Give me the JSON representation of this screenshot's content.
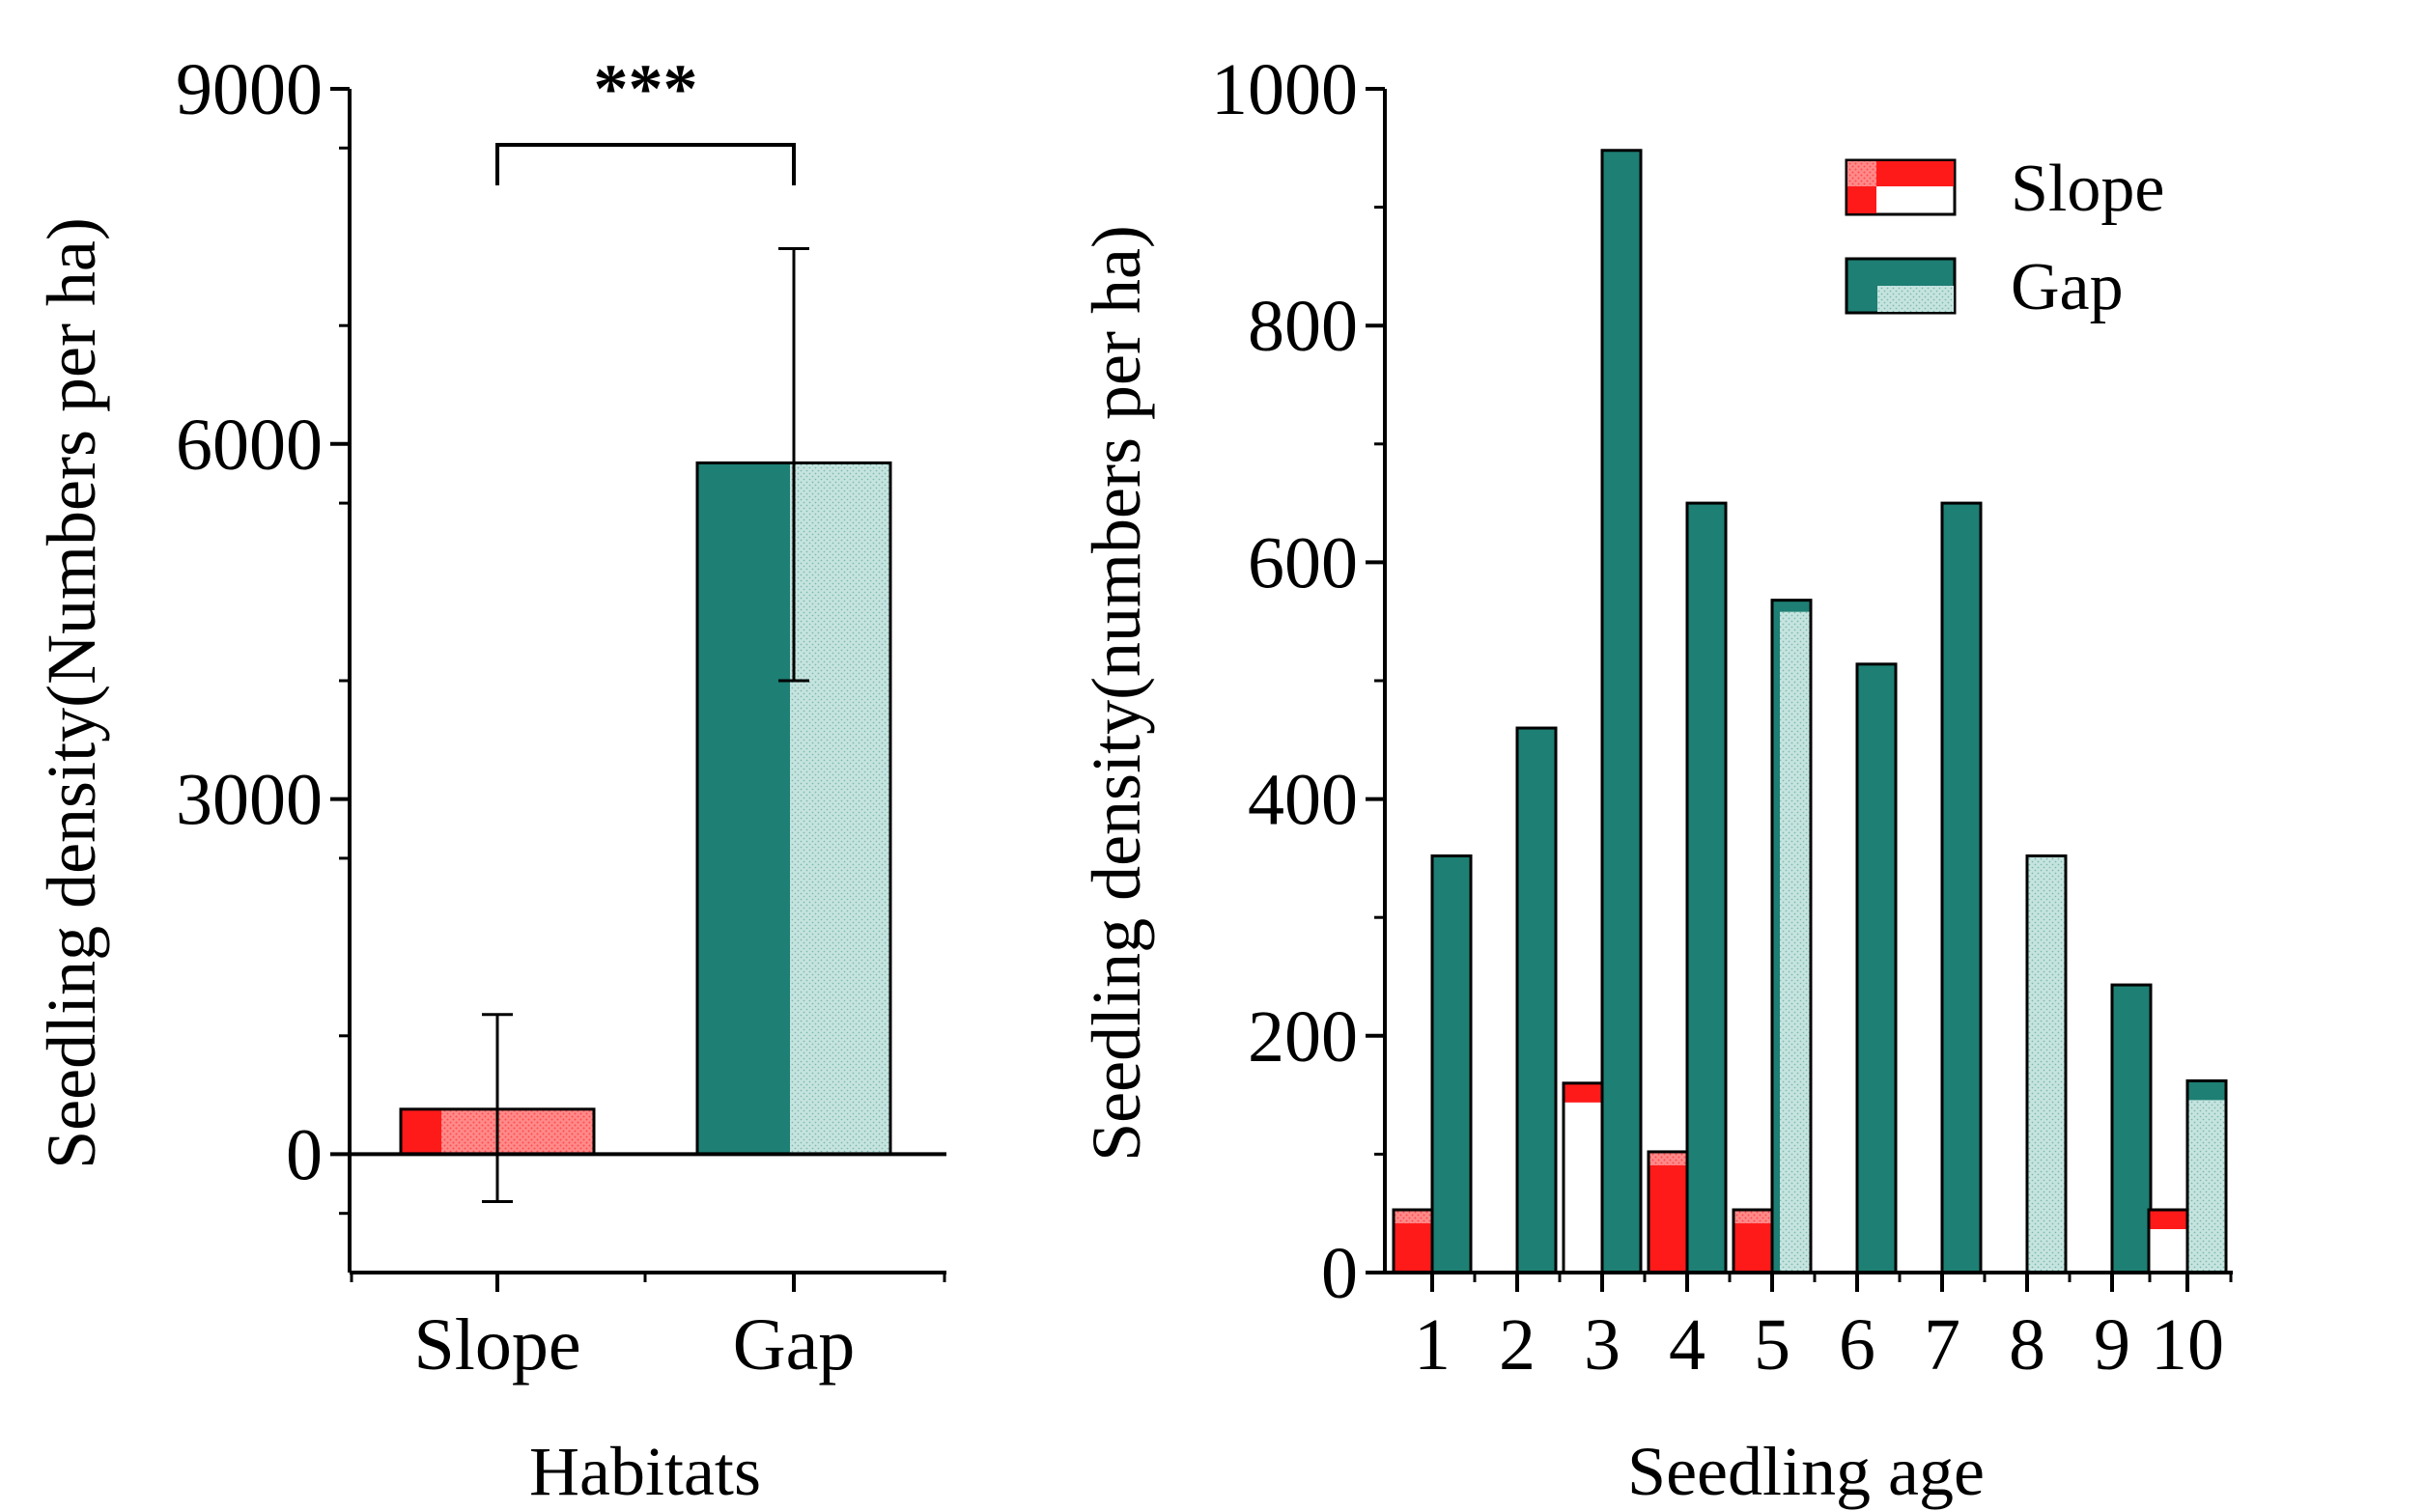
{
  "colors": {
    "slope_red": "#ff1a1a",
    "slope_light": "#ff9a9a",
    "gap_teal": "#1e7f74",
    "gap_light": "#b7dcd6",
    "axis": "#000000",
    "background": "#ffffff"
  },
  "chart_data": [
    {
      "type": "bar",
      "title": "",
      "categories": [
        "Slope",
        "Gap"
      ],
      "values": [
        380,
        5840
      ],
      "error_bars": [
        {
          "lower": -400,
          "upper": 1180
        },
        {
          "lower": 4000,
          "upper": 7650
        }
      ],
      "significance": {
        "label": "***",
        "between": [
          "Slope",
          "Gap"
        ]
      },
      "xlabel": "Habitats",
      "ylabel": "Seedling density(Numbers per ha)",
      "ylim": [
        -1000,
        9000
      ],
      "yticks": [
        0,
        3000,
        6000,
        9000
      ],
      "ytick_labels": [
        "0",
        "3000",
        "6000",
        "9000"
      ],
      "grid": false
    },
    {
      "type": "bar",
      "title": "",
      "categories": [
        "1",
        "2",
        "3",
        "4",
        "5",
        "6",
        "7",
        "8",
        "9",
        "10"
      ],
      "series": [
        {
          "name": "Slope",
          "values": [
            53,
            0,
            160,
            102,
            53,
            0,
            0,
            0,
            0,
            53
          ]
        },
        {
          "name": "Gap",
          "values": [
            352,
            460,
            948,
            650,
            568,
            514,
            650,
            352,
            243,
            162
          ]
        }
      ],
      "xlabel": "Seedling age",
      "ylabel": "Seedling density(numbers per ha)",
      "ylim": [
        0,
        1000
      ],
      "yticks": [
        0,
        200,
        400,
        600,
        800,
        1000
      ],
      "ytick_labels": [
        "0",
        "200",
        "400",
        "600",
        "800",
        "1000"
      ],
      "legend": {
        "position": "top-right",
        "entries": [
          "Slope",
          "Gap"
        ]
      },
      "grid": false
    }
  ]
}
